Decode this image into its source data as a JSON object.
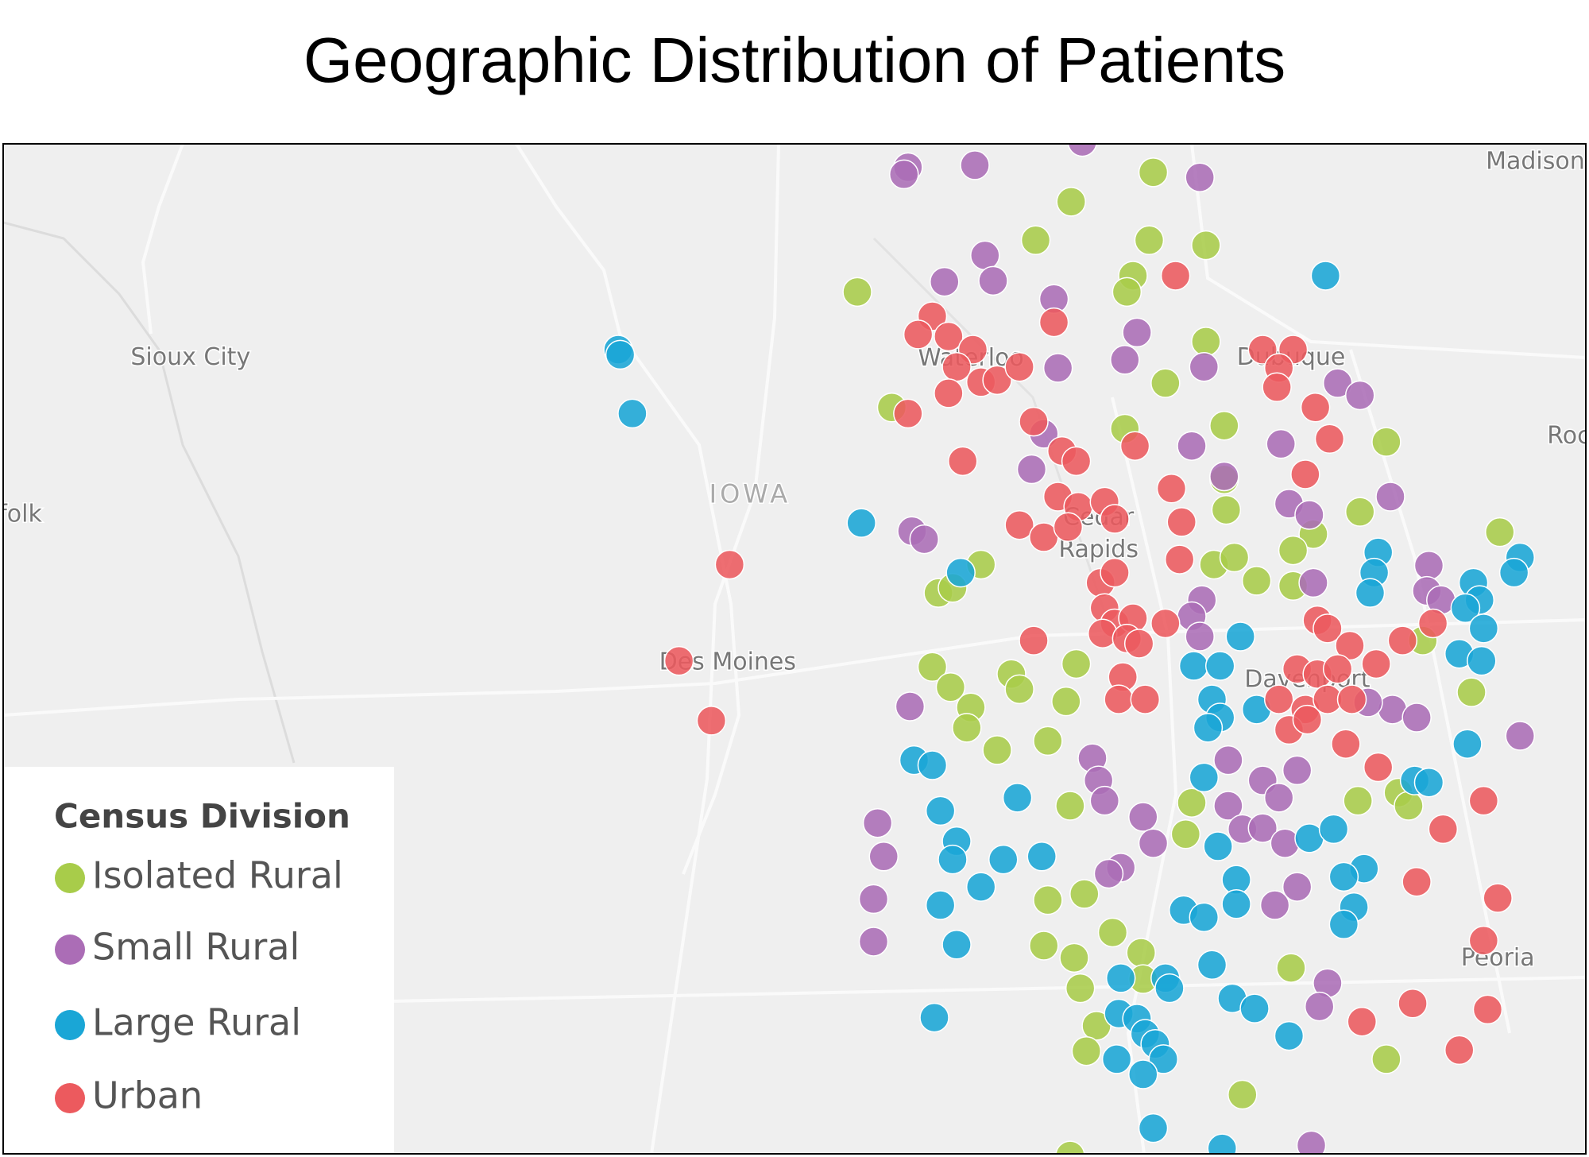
{
  "header": {
    "title": "Geographic Distribution of Patients"
  },
  "map": {
    "labels": [
      "Madison",
      "Sioux City",
      "Waterloo",
      "Dubuque",
      "Roc",
      "folk",
      "IOWA",
      "Cedar",
      "Rapids",
      "Des Moines",
      "Davenport",
      "Peoria"
    ]
  },
  "legend": {
    "title": "Census Division",
    "items": [
      {
        "label": "Isolated Rural",
        "color": "#a8cc4a"
      },
      {
        "label": "Small Rural",
        "color": "#ab6db6"
      },
      {
        "label": "Large Rural",
        "color": "#1aa6d6"
      },
      {
        "label": "Urban",
        "color": "#ec5a5e"
      }
    ]
  }
}
